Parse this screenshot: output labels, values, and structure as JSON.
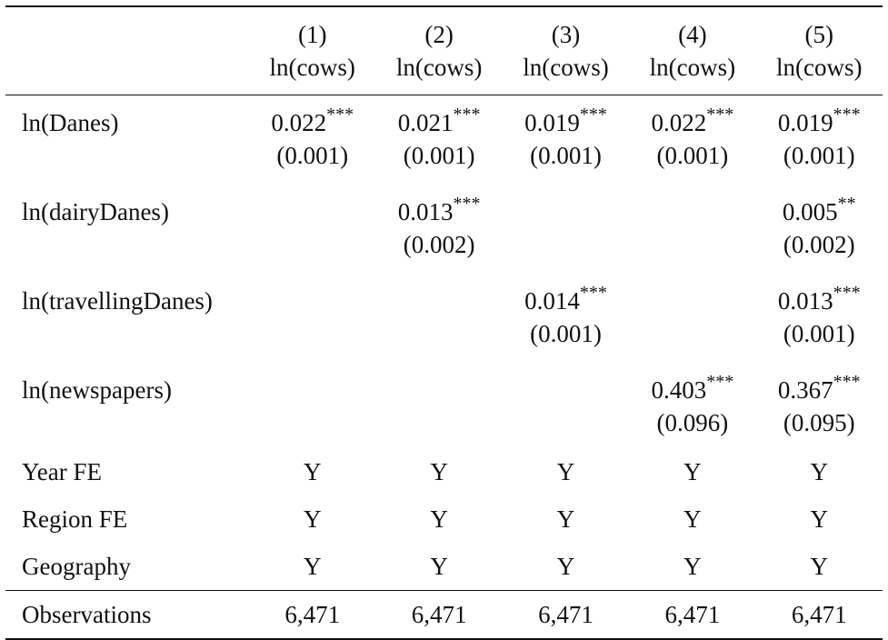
{
  "table": {
    "columns": [
      {
        "number": "(1)",
        "dep_var": "ln(cows)"
      },
      {
        "number": "(2)",
        "dep_var": "ln(cows)"
      },
      {
        "number": "(3)",
        "dep_var": "ln(cows)"
      },
      {
        "number": "(4)",
        "dep_var": "ln(cows)"
      },
      {
        "number": "(5)",
        "dep_var": "ln(cows)"
      }
    ],
    "coef_rows": [
      {
        "label": "ln(Danes)",
        "cells": [
          {
            "coef": "0.022",
            "stars": "***",
            "se": "(0.001)"
          },
          {
            "coef": "0.021",
            "stars": "***",
            "se": "(0.001)"
          },
          {
            "coef": "0.019",
            "stars": "***",
            "se": "(0.001)"
          },
          {
            "coef": "0.022",
            "stars": "***",
            "se": "(0.001)"
          },
          {
            "coef": "0.019",
            "stars": "***",
            "se": "(0.001)"
          }
        ]
      },
      {
        "label": "ln(dairyDanes)",
        "cells": [
          {
            "coef": "",
            "stars": "",
            "se": ""
          },
          {
            "coef": "0.013",
            "stars": "***",
            "se": "(0.002)"
          },
          {
            "coef": "",
            "stars": "",
            "se": ""
          },
          {
            "coef": "",
            "stars": "",
            "se": ""
          },
          {
            "coef": "0.005",
            "stars": "**",
            "se": "(0.002)"
          }
        ]
      },
      {
        "label": "ln(travellingDanes)",
        "cells": [
          {
            "coef": "",
            "stars": "",
            "se": ""
          },
          {
            "coef": "",
            "stars": "",
            "se": ""
          },
          {
            "coef": "0.014",
            "stars": "***",
            "se": "(0.001)"
          },
          {
            "coef": "",
            "stars": "",
            "se": ""
          },
          {
            "coef": "0.013",
            "stars": "***",
            "se": "(0.001)"
          }
        ]
      },
      {
        "label": "ln(newspapers)",
        "cells": [
          {
            "coef": "",
            "stars": "",
            "se": ""
          },
          {
            "coef": "",
            "stars": "",
            "se": ""
          },
          {
            "coef": "",
            "stars": "",
            "se": ""
          },
          {
            "coef": "0.403",
            "stars": "***",
            "se": "(0.096)"
          },
          {
            "coef": "0.367",
            "stars": "***",
            "se": "(0.095)"
          }
        ]
      }
    ],
    "fe_rows": [
      {
        "label": "Year FE",
        "cells": [
          "Y",
          "Y",
          "Y",
          "Y",
          "Y"
        ]
      },
      {
        "label": "Region FE",
        "cells": [
          "Y",
          "Y",
          "Y",
          "Y",
          "Y"
        ]
      },
      {
        "label": "Geography",
        "cells": [
          "Y",
          "Y",
          "Y",
          "Y",
          "Y"
        ]
      }
    ],
    "obs_row": {
      "label": "Observations",
      "cells": [
        "6,471",
        "6,471",
        "6,471",
        "6,471",
        "6,471"
      ]
    }
  }
}
